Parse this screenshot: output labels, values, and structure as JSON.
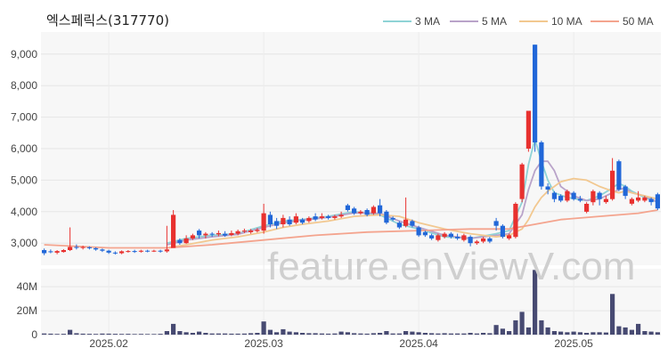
{
  "chart_data": {
    "type": "candlestick",
    "title": "엑스페릭스(317770)",
    "watermark": "feature.enViewV.com",
    "x_ticks": [
      "2025.02",
      "2025.03",
      "2025.04",
      "2025.05"
    ],
    "price_axis": {
      "ticks": [
        3000,
        4000,
        5000,
        6000,
        7000,
        8000,
        9000
      ],
      "tick_labels": [
        "3,000",
        "4,000",
        "5,000",
        "6,000",
        "7,000",
        "8,000",
        "9,000"
      ],
      "ylim": [
        2300,
        9700
      ]
    },
    "volume_axis": {
      "ticks": [
        0,
        20,
        40
      ],
      "tick_labels": [
        "0",
        "20M",
        "40M"
      ],
      "ylim": [
        0,
        55
      ],
      "unit": "M"
    },
    "up_color": "#e8312f",
    "down_color": "#2167d8",
    "volume_color": "#474a72",
    "legend": [
      {
        "label": "3 MA",
        "color": "#8fd3d6"
      },
      {
        "label": "5 MA",
        "color": "#b9a3c9"
      },
      {
        "label": "10 MA",
        "color": "#f2c890"
      },
      {
        "label": "50 MA",
        "color": "#f4a48e"
      }
    ],
    "candles": [
      [
        2780,
        2680,
        2830,
        2620,
        1.0
      ],
      [
        2740,
        2720,
        2800,
        2680,
        0.8
      ],
      [
        2700,
        2750,
        2780,
        2650,
        0.6
      ],
      [
        2720,
        2780,
        2810,
        2700,
        0.7
      ],
      [
        2780,
        2880,
        3500,
        2750,
        4.0
      ],
      [
        2880,
        2860,
        2960,
        2800,
        1.2
      ],
      [
        2850,
        2880,
        2920,
        2800,
        0.8
      ],
      [
        2870,
        2840,
        2900,
        2800,
        0.7
      ],
      [
        2840,
        2800,
        2870,
        2760,
        0.6
      ],
      [
        2800,
        2760,
        2830,
        2720,
        0.9
      ],
      [
        2760,
        2700,
        2790,
        2660,
        0.8
      ],
      [
        2700,
        2680,
        2740,
        2640,
        0.7
      ],
      [
        2680,
        2740,
        2770,
        2650,
        0.6
      ],
      [
        2740,
        2750,
        2780,
        2700,
        0.7
      ],
      [
        2750,
        2730,
        2790,
        2690,
        0.5
      ],
      [
        2730,
        2760,
        2790,
        2700,
        0.6
      ],
      [
        2760,
        2750,
        2790,
        2710,
        0.5
      ],
      [
        2750,
        2760,
        2790,
        2720,
        0.5
      ],
      [
        2760,
        2740,
        2790,
        2700,
        0.7
      ],
      [
        2740,
        2800,
        3550,
        2700,
        3.0
      ],
      [
        2850,
        3900,
        4050,
        2850,
        9.0
      ],
      [
        3100,
        3000,
        3150,
        2950,
        3.0
      ],
      [
        3000,
        3150,
        3250,
        2980,
        2.0
      ],
      [
        3150,
        3250,
        3300,
        3100,
        1.5
      ],
      [
        3400,
        3250,
        3450,
        3150,
        2.5
      ],
      [
        3250,
        3300,
        3350,
        3150,
        1.5
      ],
      [
        3300,
        3280,
        3350,
        3200,
        1.0
      ],
      [
        3280,
        3320,
        3400,
        3220,
        1.0
      ],
      [
        3300,
        3240,
        3380,
        3200,
        1.0
      ],
      [
        3260,
        3320,
        3400,
        3220,
        0.8
      ],
      [
        3300,
        3380,
        3430,
        3250,
        0.8
      ],
      [
        3380,
        3400,
        3460,
        3320,
        0.9
      ],
      [
        3350,
        3400,
        3450,
        3300,
        1.2
      ],
      [
        3380,
        3420,
        3480,
        3340,
        1.5
      ],
      [
        3400,
        3950,
        4250,
        3300,
        11.0
      ],
      [
        3900,
        3600,
        4000,
        3500,
        4.0
      ],
      [
        3700,
        3550,
        3800,
        3450,
        2.0
      ],
      [
        3600,
        3800,
        3900,
        3500,
        4.5
      ],
      [
        3750,
        3600,
        3850,
        3550,
        2.5
      ],
      [
        3650,
        3850,
        3950,
        3600,
        2.0
      ],
      [
        3750,
        3650,
        3800,
        3600,
        1.5
      ],
      [
        3700,
        3800,
        3850,
        3650,
        1.2
      ],
      [
        3850,
        3750,
        3950,
        3700,
        1.2
      ],
      [
        3800,
        3850,
        3950,
        3750,
        1.0
      ],
      [
        3850,
        3800,
        3900,
        3750,
        0.8
      ],
      [
        3800,
        3850,
        3900,
        3750,
        1.0
      ],
      [
        3850,
        3900,
        4000,
        3800,
        2.5
      ],
      [
        4200,
        4050,
        4250,
        4000,
        2.0
      ],
      [
        4100,
        3950,
        4150,
        3900,
        1.2
      ],
      [
        3950,
        4000,
        4050,
        3900,
        1.0
      ],
      [
        4050,
        3900,
        4100,
        3850,
        0.8
      ],
      [
        3950,
        4150,
        4200,
        3900,
        1.2
      ],
      [
        4200,
        3950,
        4400,
        3850,
        1.5
      ],
      [
        4000,
        3650,
        4050,
        3600,
        3.0
      ],
      [
        3800,
        3750,
        3850,
        3700,
        1.0
      ],
      [
        3650,
        3500,
        3700,
        3450,
        1.0
      ],
      [
        3550,
        3750,
        4450,
        3500,
        3.0
      ],
      [
        3700,
        3550,
        3750,
        3500,
        2.5
      ],
      [
        3500,
        3250,
        3550,
        3200,
        2.0
      ],
      [
        3350,
        3250,
        3400,
        3200,
        1.5
      ],
      [
        3250,
        3150,
        3300,
        3100,
        1.2
      ],
      [
        3100,
        3250,
        3300,
        3050,
        1.0
      ],
      [
        3200,
        3300,
        3350,
        3150,
        1.2
      ],
      [
        3300,
        3200,
        3350,
        3150,
        1.0
      ],
      [
        3200,
        3150,
        3300,
        3100,
        1.0
      ],
      [
        3100,
        3250,
        3300,
        3050,
        1.0
      ],
      [
        3200,
        3000,
        3250,
        2900,
        1.5
      ],
      [
        3000,
        3050,
        3100,
        2950,
        1.0
      ],
      [
        3050,
        3150,
        3200,
        3000,
        1.5
      ],
      [
        3150,
        3050,
        3200,
        3000,
        1.2
      ],
      [
        3700,
        3550,
        3800,
        3400,
        8.0
      ],
      [
        3550,
        3200,
        3600,
        3150,
        5.0
      ],
      [
        3150,
        3250,
        3300,
        3100,
        3.0
      ],
      [
        3200,
        4250,
        4300,
        3150,
        12.0
      ],
      [
        4400,
        5500,
        5550,
        4300,
        19.0
      ],
      [
        6000,
        7200,
        7200,
        5900,
        6.0
      ],
      [
        9300,
        6200,
        9300,
        5900,
        54.0
      ],
      [
        6200,
        4800,
        6250,
        4700,
        12.0
      ],
      [
        4800,
        4700,
        4900,
        4550,
        6.0
      ],
      [
        4600,
        4400,
        4650,
        4300,
        3.0
      ],
      [
        4500,
        4350,
        4550,
        4300,
        2.5
      ],
      [
        4350,
        4650,
        4700,
        4300,
        2.0
      ],
      [
        4600,
        4400,
        4650,
        4350,
        2.5
      ],
      [
        4400,
        4350,
        4500,
        4300,
        2.0
      ],
      [
        4000,
        4250,
        4300,
        3950,
        1.5
      ],
      [
        4300,
        4650,
        4700,
        4200,
        2.0
      ],
      [
        4600,
        4400,
        4650,
        4200,
        2.0
      ],
      [
        4300,
        4400,
        4500,
        4250,
        1.8
      ],
      [
        4400,
        5300,
        5700,
        4350,
        34.0
      ],
      [
        5600,
        4700,
        5650,
        4650,
        7.0
      ],
      [
        4800,
        4500,
        4850,
        4400,
        6.0
      ],
      [
        4250,
        4400,
        4450,
        4200,
        4.0
      ],
      [
        4350,
        4450,
        4650,
        4300,
        9.0
      ],
      [
        4350,
        4450,
        4500,
        4300,
        3.0
      ],
      [
        4400,
        4300,
        4450,
        4200,
        2.5
      ],
      [
        4550,
        4100,
        4600,
        4050,
        2.0
      ]
    ],
    "ma_series": [
      {
        "label": "3 MA",
        "points": [
          [
            19,
            3000
          ],
          [
            22,
            3150
          ],
          [
            26,
            3250
          ],
          [
            30,
            3300
          ],
          [
            34,
            3550
          ],
          [
            37,
            3700
          ],
          [
            40,
            3750
          ],
          [
            44,
            3850
          ],
          [
            48,
            4000
          ],
          [
            52,
            3900
          ],
          [
            55,
            3600
          ],
          [
            58,
            3450
          ],
          [
            62,
            3200
          ],
          [
            66,
            3150
          ],
          [
            70,
            3300
          ],
          [
            72,
            3400
          ],
          [
            74,
            4300
          ],
          [
            75,
            5500
          ],
          [
            76,
            6300
          ],
          [
            77,
            5600
          ],
          [
            78,
            5000
          ],
          [
            79,
            4600
          ],
          [
            81,
            4450
          ],
          [
            84,
            4350
          ],
          [
            86,
            4500
          ],
          [
            88,
            4750
          ],
          [
            89,
            4900
          ],
          [
            90,
            4800
          ],
          [
            91,
            4650
          ],
          [
            93,
            4450
          ],
          [
            95,
            4300
          ]
        ]
      },
      {
        "label": "5 MA",
        "points": [
          [
            19,
            2950
          ],
          [
            22,
            3100
          ],
          [
            26,
            3200
          ],
          [
            30,
            3280
          ],
          [
            34,
            3500
          ],
          [
            37,
            3650
          ],
          [
            40,
            3730
          ],
          [
            44,
            3820
          ],
          [
            48,
            3960
          ],
          [
            52,
            3950
          ],
          [
            55,
            3700
          ],
          [
            58,
            3500
          ],
          [
            62,
            3250
          ],
          [
            66,
            3150
          ],
          [
            70,
            3250
          ],
          [
            72,
            3300
          ],
          [
            74,
            3900
          ],
          [
            75,
            4700
          ],
          [
            76,
            5300
          ],
          [
            77,
            5600
          ],
          [
            78,
            5600
          ],
          [
            79,
            5300
          ],
          [
            80,
            4800
          ],
          [
            82,
            4500
          ],
          [
            84,
            4350
          ],
          [
            86,
            4400
          ],
          [
            88,
            4600
          ],
          [
            89,
            4700
          ],
          [
            90,
            4750
          ],
          [
            91,
            4600
          ],
          [
            93,
            4500
          ],
          [
            95,
            4300
          ]
        ]
      },
      {
        "label": "10 MA",
        "points": [
          [
            19,
            2850
          ],
          [
            22,
            2950
          ],
          [
            26,
            3100
          ],
          [
            30,
            3200
          ],
          [
            34,
            3350
          ],
          [
            37,
            3500
          ],
          [
            40,
            3600
          ],
          [
            44,
            3700
          ],
          [
            48,
            3850
          ],
          [
            52,
            3900
          ],
          [
            55,
            3850
          ],
          [
            58,
            3650
          ],
          [
            62,
            3450
          ],
          [
            66,
            3300
          ],
          [
            70,
            3200
          ],
          [
            72,
            3250
          ],
          [
            74,
            3450
          ],
          [
            75,
            3750
          ],
          [
            76,
            4150
          ],
          [
            77,
            4450
          ],
          [
            78,
            4650
          ],
          [
            79,
            4800
          ],
          [
            80,
            4950
          ],
          [
            82,
            5050
          ],
          [
            84,
            5000
          ],
          [
            86,
            4800
          ],
          [
            88,
            4650
          ],
          [
            89,
            4600
          ],
          [
            90,
            4650
          ],
          [
            91,
            4600
          ],
          [
            93,
            4500
          ],
          [
            95,
            4400
          ]
        ]
      },
      {
        "label": "50 MA",
        "points": [
          [
            0,
            2950
          ],
          [
            10,
            2850
          ],
          [
            19,
            2850
          ],
          [
            26,
            2950
          ],
          [
            34,
            3100
          ],
          [
            42,
            3250
          ],
          [
            50,
            3350
          ],
          [
            58,
            3400
          ],
          [
            66,
            3450
          ],
          [
            72,
            3450
          ],
          [
            76,
            3600
          ],
          [
            80,
            3750
          ],
          [
            86,
            3850
          ],
          [
            92,
            3950
          ],
          [
            95,
            4050
          ]
        ]
      }
    ]
  }
}
